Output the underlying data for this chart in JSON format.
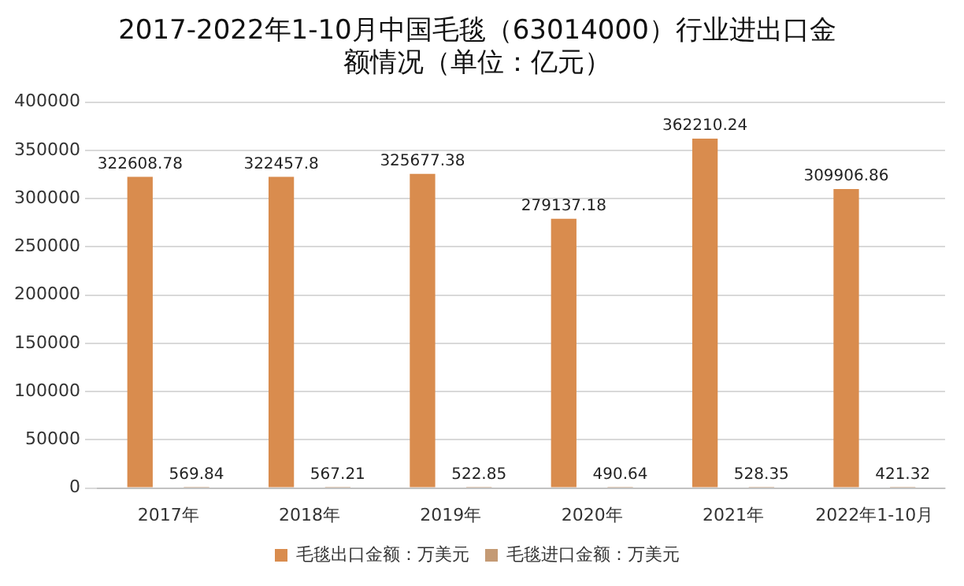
{
  "chart_data": {
    "type": "bar",
    "title": "2017-2022年1-10月中国毛毯（63014000）行业进出口金额情况（单位：亿元）",
    "categories": [
      "2017年",
      "2018年",
      "2019年",
      "2020年",
      "2021年",
      "2022年1-10月"
    ],
    "series": [
      {
        "name": "毛毯出口金额：万美元",
        "color": "#d98c4e",
        "values": [
          322608.78,
          322457.8,
          325677.38,
          279137.18,
          362210.24,
          309906.86
        ]
      },
      {
        "name": "毛毯进口金额：万美元",
        "color": "#c49a74",
        "values": [
          569.84,
          567.21,
          522.85,
          490.64,
          528.35,
          421.32
        ]
      }
    ],
    "ylim": [
      0,
      400000
    ],
    "yticks": [
      0,
      50000,
      100000,
      150000,
      200000,
      250000,
      300000,
      350000,
      400000
    ],
    "grid": "y",
    "legend": "bottom",
    "data_labels": true
  }
}
